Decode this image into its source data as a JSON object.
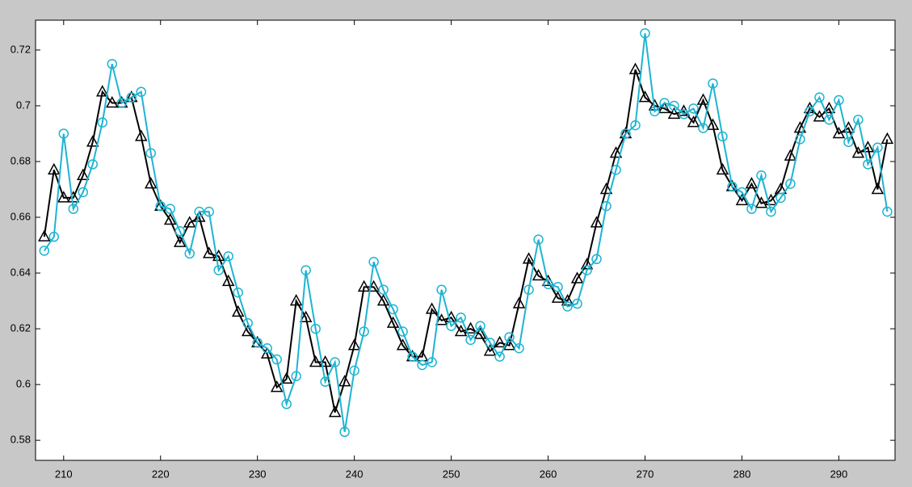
{
  "chart_data": {
    "type": "line",
    "x": [
      208,
      209,
      210,
      211,
      212,
      213,
      214,
      215,
      216,
      217,
      218,
      219,
      220,
      221,
      222,
      223,
      224,
      225,
      226,
      227,
      228,
      229,
      230,
      231,
      232,
      233,
      234,
      235,
      236,
      237,
      238,
      239,
      240,
      241,
      242,
      243,
      244,
      245,
      246,
      247,
      248,
      249,
      250,
      251,
      252,
      253,
      254,
      255,
      256,
      257,
      258,
      259,
      260,
      261,
      262,
      263,
      264,
      265,
      266,
      267,
      268,
      269,
      270,
      271,
      272,
      273,
      274,
      275,
      276,
      277,
      278,
      279,
      280,
      281,
      282,
      283,
      284,
      285,
      286,
      287,
      288,
      289,
      290,
      291,
      292,
      293,
      294,
      295
    ],
    "series": [
      {
        "color": "#000000",
        "marker": "triangle",
        "values": [
          0.653,
          0.677,
          0.667,
          0.667,
          0.675,
          0.687,
          0.705,
          0.701,
          0.701,
          0.703,
          0.689,
          0.672,
          0.664,
          0.659,
          0.651,
          0.658,
          0.66,
          0.647,
          0.646,
          0.637,
          0.626,
          0.619,
          0.615,
          0.611,
          0.599,
          0.602,
          0.63,
          0.624,
          0.608,
          0.608,
          0.59,
          0.601,
          0.614,
          0.635,
          0.635,
          0.63,
          0.622,
          0.614,
          0.61,
          0.61,
          0.627,
          0.623,
          0.624,
          0.619,
          0.62,
          0.618,
          0.612,
          0.615,
          0.614,
          0.629,
          0.645,
          0.639,
          0.637,
          0.631,
          0.63,
          0.638,
          0.643,
          0.658,
          0.67,
          0.683,
          0.69,
          0.713,
          0.703,
          0.7,
          0.699,
          0.697,
          0.698,
          0.694,
          0.702,
          0.693,
          0.677,
          0.671,
          0.666,
          0.672,
          0.665,
          0.666,
          0.67,
          0.682,
          0.692,
          0.699,
          0.696,
          0.699,
          0.69,
          0.692,
          0.683,
          0.685,
          0.67,
          0.688
        ]
      },
      {
        "color": "#1eb4d2",
        "marker": "circle",
        "values": [
          0.648,
          0.653,
          0.69,
          0.663,
          0.669,
          0.679,
          0.694,
          0.715,
          0.701,
          0.703,
          0.705,
          0.683,
          0.664,
          0.663,
          0.655,
          0.647,
          0.662,
          0.662,
          0.641,
          0.646,
          0.633,
          0.622,
          0.615,
          0.613,
          0.609,
          0.593,
          0.603,
          0.641,
          0.62,
          0.601,
          0.608,
          0.583,
          0.605,
          0.619,
          0.644,
          0.634,
          0.627,
          0.619,
          0.61,
          0.607,
          0.608,
          0.634,
          0.621,
          0.624,
          0.616,
          0.621,
          0.615,
          0.61,
          0.617,
          0.613,
          0.634,
          0.652,
          0.636,
          0.635,
          0.628,
          0.629,
          0.641,
          0.645,
          0.664,
          0.677,
          0.69,
          0.693,
          0.726,
          0.698,
          0.701,
          0.7,
          0.697,
          0.699,
          0.692,
          0.708,
          0.689,
          0.671,
          0.669,
          0.663,
          0.675,
          0.662,
          0.667,
          0.672,
          0.688,
          0.698,
          0.703,
          0.695,
          0.702,
          0.687,
          0.695,
          0.679,
          0.685,
          0.662
        ]
      }
    ],
    "xlim": [
      207.1,
      295.8
    ],
    "ylim": [
      0.5728,
      0.7307
    ],
    "xticks": [
      210,
      220,
      230,
      240,
      250,
      260,
      270,
      280,
      290
    ],
    "yticks": [
      0.58,
      0.6,
      0.62,
      0.64,
      0.66,
      0.68,
      0.7,
      0.72
    ]
  }
}
